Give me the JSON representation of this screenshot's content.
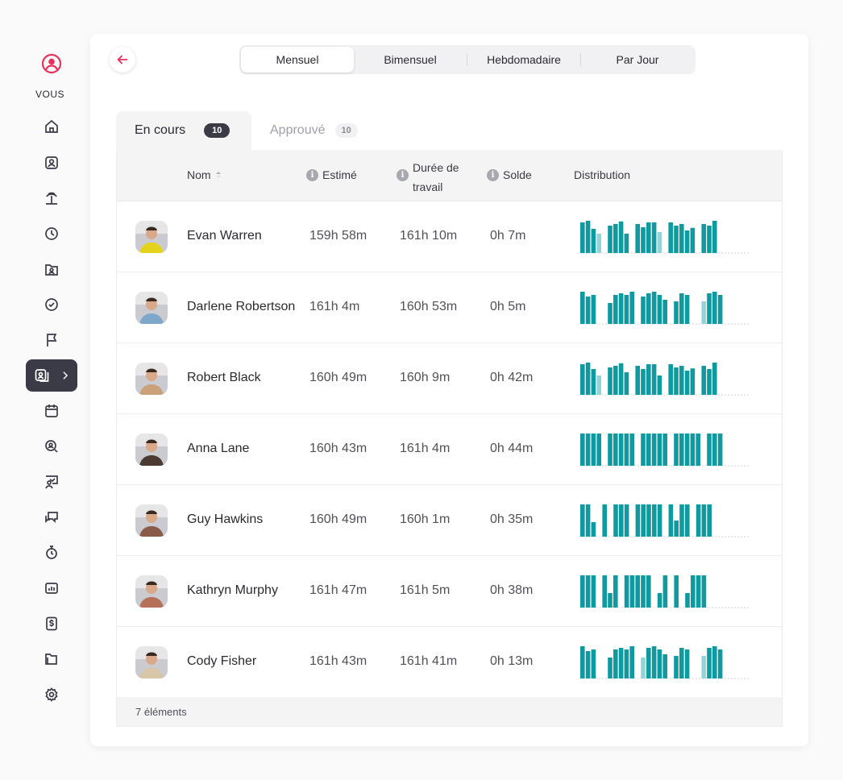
{
  "sidebar": {
    "user_label": "VOUS",
    "icons": [
      "home-icon",
      "user-square-icon",
      "palm-tree-icon",
      "clock-icon",
      "folder-user-icon",
      "check-circle-icon",
      "flag-icon",
      "calendar-icon",
      "search-user-icon",
      "presentation-user-icon",
      "chat-bubbles-icon",
      "stopwatch-icon",
      "chart-box-icon",
      "dollar-doc-icon",
      "folders-icon",
      "gear-icon"
    ],
    "active_icon": "user-cards-icon"
  },
  "periods": [
    "Mensuel",
    "Bimensuel",
    "Hebdomadaire",
    "Par Jour"
  ],
  "active_period": "Mensuel",
  "tabs": [
    {
      "label": "En cours",
      "count": "10"
    },
    {
      "label": "Approuvé",
      "count": "10"
    }
  ],
  "columns": {
    "name": "Nom",
    "estimated": "Estimé",
    "work_line1": "Durée de",
    "work_line2": "travail",
    "balance": "Solde",
    "distribution": "Distribution"
  },
  "colors": {
    "accent": "#e8315b",
    "bar_dark": "#0f9aa0",
    "bar_light": "#93d4d6",
    "active_bg": "#3b3b48"
  },
  "rows": [
    {
      "name": "Evan Warren",
      "estimated": "159h 58m",
      "work": "161h 10m",
      "balance": "0h 7m",
      "avatar_color": "#e3d31c",
      "dist": [
        [
          0.95,
          0
        ],
        [
          1,
          0
        ],
        [
          0.75,
          0
        ],
        [
          0,
          0.6
        ],
        null,
        [
          0.85,
          0
        ],
        [
          0.9,
          0
        ],
        [
          0.98,
          0
        ],
        [
          0.6,
          0
        ],
        null,
        [
          0.9,
          0
        ],
        [
          0.8,
          0
        ],
        [
          0.95,
          0
        ],
        [
          0.95,
          0
        ],
        [
          0,
          0.65
        ],
        null,
        [
          0.95,
          0
        ],
        [
          0.85,
          0
        ],
        [
          0.9,
          0
        ],
        [
          0.7,
          0
        ],
        [
          0.78,
          0
        ],
        null,
        [
          0.9,
          0
        ],
        [
          0.85,
          0
        ],
        [
          1,
          0
        ]
      ]
    },
    {
      "name": "Darlene Robertson",
      "estimated": "161h 4m",
      "work": "160h 53m",
      "balance": "0h 5m",
      "avatar_color": "#7fa7c9",
      "dist": [
        [
          1,
          0
        ],
        [
          0.85,
          0
        ],
        [
          0.9,
          0
        ],
        null,
        [
          0,
          0
        ],
        [
          0.65,
          0
        ],
        [
          0.9,
          0
        ],
        [
          0.95,
          0
        ],
        [
          0.9,
          0
        ],
        [
          1,
          0
        ],
        null,
        [
          0.85,
          0
        ],
        [
          0.95,
          0
        ],
        [
          1,
          0
        ],
        [
          0.9,
          0
        ],
        [
          0.75,
          0
        ],
        null,
        [
          0.7,
          0
        ],
        [
          0.95,
          0
        ],
        [
          0.9,
          0
        ],
        [
          0,
          0
        ],
        null,
        [
          0,
          0.7
        ],
        [
          0.95,
          0
        ],
        [
          1,
          0
        ],
        [
          0.9,
          0
        ]
      ]
    },
    {
      "name": "Robert Black",
      "estimated": "160h 49m",
      "work": "160h 9m",
      "balance": "0h 42m",
      "avatar_color": "#c9a27a",
      "dist": [
        [
          0.95,
          0
        ],
        [
          1,
          0
        ],
        [
          0.8,
          0
        ],
        [
          0,
          0.6
        ],
        null,
        [
          0.85,
          0
        ],
        [
          0.9,
          0
        ],
        [
          0.98,
          0
        ],
        [
          0.7,
          0
        ],
        null,
        [
          0.9,
          0
        ],
        [
          0.8,
          0
        ],
        [
          0.95,
          0
        ],
        [
          0.95,
          0
        ],
        [
          0.6,
          0
        ],
        null,
        [
          0.95,
          0
        ],
        [
          0.85,
          0
        ],
        [
          0.9,
          0
        ],
        [
          0.75,
          0
        ],
        [
          0.82,
          0
        ],
        null,
        [
          0.9,
          0
        ],
        [
          0.8,
          0
        ],
        [
          1,
          0
        ]
      ]
    },
    {
      "name": "Anna Lane",
      "estimated": "160h 43m",
      "work": "161h 4m",
      "balance": "0h 44m",
      "avatar_color": "#4b3a32",
      "dist": [
        [
          1,
          0
        ],
        [
          1,
          0
        ],
        [
          1,
          0
        ],
        [
          1,
          0
        ],
        null,
        [
          1,
          0
        ],
        [
          1,
          0
        ],
        [
          1,
          0
        ],
        [
          1,
          0
        ],
        [
          1,
          0
        ],
        null,
        [
          1,
          0
        ],
        [
          1,
          0
        ],
        [
          1,
          0
        ],
        [
          1,
          0
        ],
        [
          1,
          0
        ],
        null,
        [
          1,
          0
        ],
        [
          1,
          0
        ],
        [
          1,
          0
        ],
        [
          1,
          0
        ],
        [
          1,
          0
        ],
        null,
        [
          1,
          0
        ],
        [
          1,
          0
        ],
        [
          1,
          0
        ]
      ]
    },
    {
      "name": "Guy Hawkins",
      "estimated": "160h 49m",
      "work": "160h 1m",
      "balance": "0h 35m",
      "avatar_color": "#8a5a4a",
      "dist": [
        [
          1,
          0
        ],
        [
          1,
          0
        ],
        [
          0.45,
          0
        ],
        null,
        [
          1,
          0
        ],
        null,
        [
          1,
          0
        ],
        [
          1,
          0
        ],
        [
          1,
          0
        ],
        null,
        [
          1,
          0
        ],
        [
          1,
          0
        ],
        [
          1,
          0
        ],
        [
          1,
          0
        ],
        [
          1,
          0
        ],
        null,
        [
          1,
          0
        ],
        [
          0.5,
          0
        ],
        [
          1,
          0
        ],
        [
          1,
          0
        ],
        null,
        [
          1,
          0
        ],
        [
          1,
          0
        ],
        [
          1,
          0
        ]
      ]
    },
    {
      "name": "Kathryn Murphy",
      "estimated": "161h 47m",
      "work": "161h 5m",
      "balance": "0h 38m",
      "avatar_color": "#b5705a",
      "dist": [
        [
          1,
          0
        ],
        [
          1,
          0
        ],
        [
          1,
          0
        ],
        null,
        [
          1,
          0
        ],
        [
          0.45,
          0
        ],
        [
          1,
          0
        ],
        null,
        [
          1,
          0
        ],
        [
          1,
          0
        ],
        [
          1,
          0
        ],
        [
          1,
          0
        ],
        [
          1,
          0
        ],
        null,
        [
          0.45,
          0
        ],
        [
          1,
          0
        ],
        null,
        [
          1,
          0
        ],
        null,
        [
          0.45,
          0
        ],
        [
          1,
          0
        ],
        [
          1,
          0
        ],
        [
          1,
          0
        ]
      ]
    },
    {
      "name": "Cody Fisher",
      "estimated": "161h 43m",
      "work": "161h 41m",
      "balance": "0h 13m",
      "avatar_color": "#d8c6a6",
      "dist": [
        [
          1,
          0
        ],
        [
          0.85,
          0
        ],
        [
          0.9,
          0
        ],
        null,
        [
          0,
          0
        ],
        [
          0.65,
          0
        ],
        [
          0.9,
          0
        ],
        [
          0.95,
          0
        ],
        [
          0.9,
          0
        ],
        [
          1,
          0
        ],
        null,
        [
          0,
          0.65
        ],
        [
          0.95,
          0
        ],
        [
          1,
          0
        ],
        [
          0.9,
          0
        ],
        [
          0.75,
          0
        ],
        null,
        [
          0.7,
          0
        ],
        [
          0.95,
          0
        ],
        [
          0.9,
          0
        ],
        [
          0,
          0
        ],
        null,
        [
          0,
          0.7
        ],
        [
          0.95,
          0
        ],
        [
          1,
          0
        ],
        [
          0.9,
          0
        ]
      ]
    }
  ],
  "footer": "7 éléments"
}
